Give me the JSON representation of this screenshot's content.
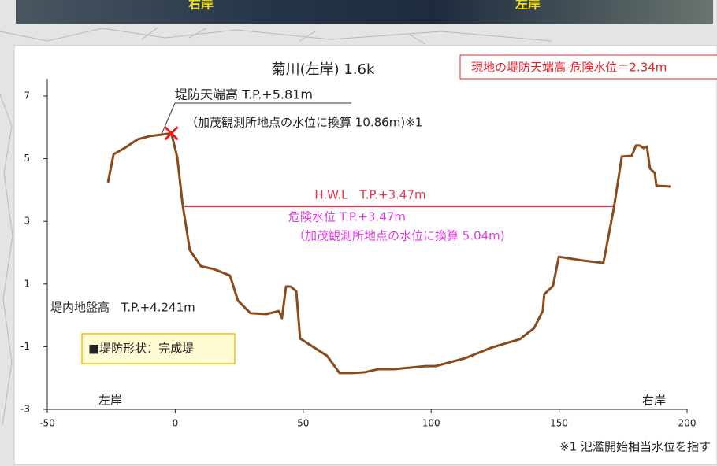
{
  "chart_data": {
    "type": "line",
    "title": "菊川(左岸) 1.6k",
    "callout": "現地の堤防天端高-危険水位＝2.34m",
    "photo_labels": [
      "右岸",
      "左岸"
    ],
    "footnote": "※1 氾濫開始相当水位を指す",
    "xlim": [
      -50,
      200
    ],
    "xticks": [
      -50,
      0,
      50,
      100,
      150,
      200
    ],
    "ylim": [
      -3,
      7.55
    ],
    "yticks": [
      -3,
      -1,
      1,
      3,
      5,
      7
    ],
    "grid": false,
    "series": [
      {
        "color": "#8a4a1c",
        "x": [
          -26.3,
          -24.1,
          -19.8,
          -14.6,
          -10.0,
          -5.4,
          -1.5,
          0.8,
          2.9,
          5.7,
          10.0,
          15.3,
          21.4,
          24.5,
          29.4,
          35.6,
          40.5,
          41.7,
          43.3,
          45.1,
          47.3,
          48.8,
          59.3,
          64.2,
          69.4,
          73.8,
          79.3,
          85.4,
          97.8,
          101.8,
          113.2,
          123.9,
          134.7,
          140.2,
          143.6,
          144.2,
          147.6,
          149.9,
          159.3,
          167.3,
          171.4,
          174.5,
          178.4,
          180.0,
          181.5,
          183.0,
          184.3,
          185.5,
          187.4,
          188.0,
          193.5
        ],
        "values": [
          4.24,
          5.14,
          5.34,
          5.62,
          5.72,
          5.77,
          5.81,
          5.04,
          3.53,
          2.08,
          1.57,
          1.47,
          1.27,
          0.47,
          0.07,
          0.04,
          0.14,
          -0.09,
          0.92,
          0.92,
          0.77,
          -0.74,
          -1.29,
          -1.84,
          -1.84,
          -1.82,
          -1.72,
          -1.72,
          -1.62,
          -1.62,
          -1.37,
          -1.02,
          -0.76,
          -0.41,
          0.14,
          0.67,
          0.94,
          1.87,
          1.75,
          1.67,
          3.43,
          5.07,
          5.09,
          5.42,
          5.42,
          5.34,
          5.39,
          4.69,
          4.54,
          4.14,
          4.11
        ]
      }
    ],
    "hwl": {
      "x": [
        3,
        171.5
      ],
      "y": 3.47,
      "color": "#e8344e"
    },
    "crest_marker": {
      "x": -1.5,
      "y": 5.81,
      "color": "#e8202a"
    },
    "annotations": [
      "堤防天端高 T.P.+5.81m",
      "（加茂観測所地点の水位に換算 10.86m)※1",
      "H.W.L　T.P.+3.47m",
      "危険水位 T.P.+3.47m",
      "（加茂観測所地点の水位に換算 5.04m)",
      "堤内地盤高　T.P.+4.241m",
      "■堤防形状：完成堤",
      "左岸",
      "右岸"
    ]
  }
}
